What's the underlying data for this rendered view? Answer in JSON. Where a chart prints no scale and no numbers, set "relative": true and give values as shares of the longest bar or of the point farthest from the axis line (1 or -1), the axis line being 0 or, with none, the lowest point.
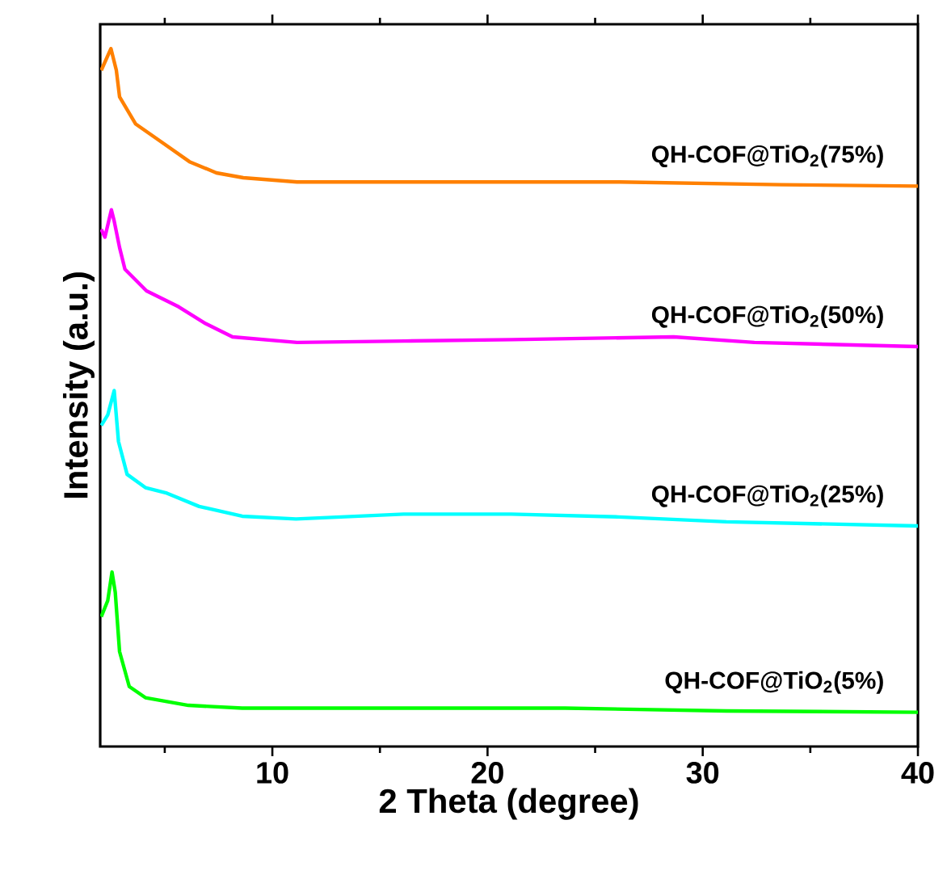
{
  "chart_data": {
    "type": "line",
    "relative": true,
    "xlabel": "2 Theta (degree)",
    "ylabel": "Intensity (a.u.)",
    "xlim": [
      2,
      40
    ],
    "xticks": [
      {
        "value": 5,
        "label": null
      },
      10,
      {
        "value": 15,
        "label": null
      },
      20,
      {
        "value": 25,
        "label": null
      },
      30,
      {
        "value": 35,
        "label": null
      },
      40
    ],
    "series": [
      {
        "name": "QH-COF@TiO$_{2}$(75%)",
        "color": "#ff8000",
        "x": [
          2.05,
          2.5,
          2.75,
          2.9,
          3.65,
          4.9,
          6.15,
          7.4,
          8.65,
          11.15,
          18.65,
          26.15,
          33.65,
          40
        ],
        "values": [
          0.969,
          1.0,
          0.969,
          0.931,
          0.892,
          0.865,
          0.838,
          0.822,
          0.815,
          0.809,
          0.809,
          0.809,
          0.805,
          0.803
        ]
      },
      {
        "name": "QH-COF@TiO$_{2}$(50%)",
        "color": "#ff00ff",
        "x": [
          2.05,
          2.22,
          2.52,
          2.65,
          2.9,
          3.15,
          4.15,
          5.65,
          6.9,
          8.15,
          11.15,
          16.15,
          21.15,
          28.65,
          32.4,
          40
        ],
        "values": [
          0.741,
          0.73,
          0.769,
          0.753,
          0.715,
          0.684,
          0.653,
          0.63,
          0.606,
          0.587,
          0.579,
          0.581,
          0.583,
          0.587,
          0.579,
          0.573
        ]
      },
      {
        "name": "QH-COF@TiO$_{2}$(25%)",
        "color": "#00ffff",
        "x": [
          2.05,
          2.35,
          2.65,
          2.85,
          3.25,
          4.1,
          5.1,
          6.6,
          8.6,
          11.1,
          16.1,
          21.1,
          26.1,
          31.1,
          40
        ],
        "values": [
          0.46,
          0.475,
          0.51,
          0.437,
          0.39,
          0.371,
          0.363,
          0.344,
          0.33,
          0.326,
          0.333,
          0.333,
          0.329,
          0.322,
          0.316
        ]
      },
      {
        "name": "QH-COF@TiO$_{2}$(5%)",
        "color": "#00ff00",
        "x": [
          2.05,
          2.35,
          2.55,
          2.7,
          2.9,
          3.35,
          4.1,
          6.1,
          8.6,
          16.1,
          23.6,
          31.1,
          40
        ],
        "values": [
          0.186,
          0.209,
          0.25,
          0.221,
          0.136,
          0.086,
          0.07,
          0.059,
          0.055,
          0.055,
          0.055,
          0.051,
          0.049
        ]
      }
    ]
  }
}
